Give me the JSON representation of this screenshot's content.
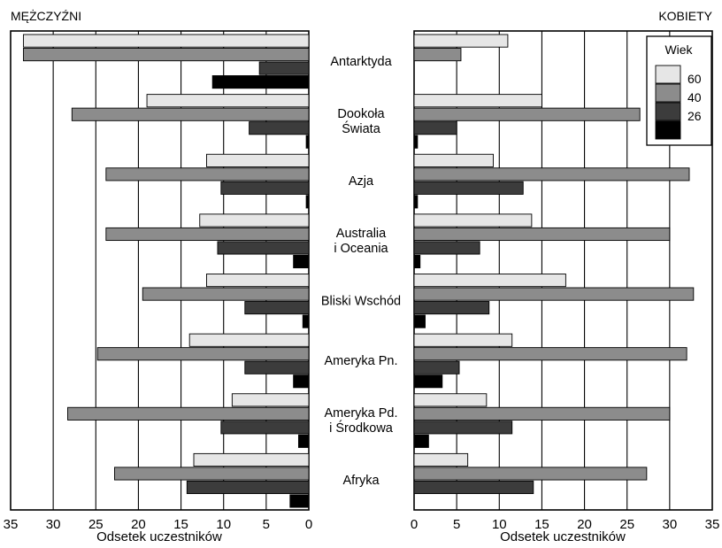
{
  "titles": {
    "left": "MĘŻCZYŹNI",
    "right": "KOBIETY"
  },
  "legend": {
    "title": "Wiek"
  },
  "chart_data": {
    "type": "bar",
    "orientation": "horizontal",
    "layout": "back-to-back",
    "categories": [
      [
        "Antarktyda"
      ],
      [
        "Dookoła",
        "Świata"
      ],
      [
        "Azja"
      ],
      [
        "Australia",
        "i Oceania"
      ],
      [
        "Bliski Wschód"
      ],
      [
        "Ameryka Pn."
      ],
      [
        "Ameryka Pd.",
        "i Środkowa"
      ],
      [
        "Afryka"
      ]
    ],
    "series": [
      {
        "name": "60",
        "color": "#e6e6e6"
      },
      {
        "name": "40",
        "color": "#8c8c8c"
      },
      {
        "name": "26",
        "color": "#3c3c3c"
      },
      {
        "name": "",
        "color": "#000000"
      }
    ],
    "panels": [
      {
        "title": "MĘŻCZYŹNI",
        "xlabel": "Odsetek uczestników",
        "xlim": [
          35,
          0
        ],
        "ticks": [
          "35",
          "30",
          "25",
          "20",
          "15",
          "10",
          "5",
          "0"
        ],
        "values": [
          [
            33.5,
            19,
            12,
            12.8,
            12,
            14,
            9,
            13.5
          ],
          [
            33.5,
            27.8,
            23.8,
            23.8,
            19.5,
            24.8,
            28.3,
            22.8
          ],
          [
            5.8,
            7,
            10.3,
            10.7,
            7.5,
            7.5,
            10.3,
            14.3
          ],
          [
            11.3,
            0.3,
            0.3,
            1.8,
            0.7,
            1.8,
            1.2,
            2.2
          ]
        ]
      },
      {
        "title": "KOBIETY",
        "xlabel": "Odsetek uczestników",
        "xlim": [
          0,
          35
        ],
        "ticks": [
          "0",
          "5",
          "10",
          "15",
          "20",
          "25",
          "30",
          "35"
        ],
        "values": [
          [
            11,
            15,
            9.3,
            13.8,
            17.8,
            11.5,
            8.5,
            6.3
          ],
          [
            5.5,
            26.5,
            32.3,
            30,
            32.8,
            32,
            30,
            27.3
          ],
          [
            0,
            5,
            12.8,
            7.7,
            8.8,
            5.3,
            11.5,
            14
          ],
          [
            0,
            0.4,
            0.4,
            0.7,
            1.3,
            3.3,
            1.7,
            0
          ]
        ]
      }
    ],
    "grid": true,
    "legend_position": "top-right"
  }
}
